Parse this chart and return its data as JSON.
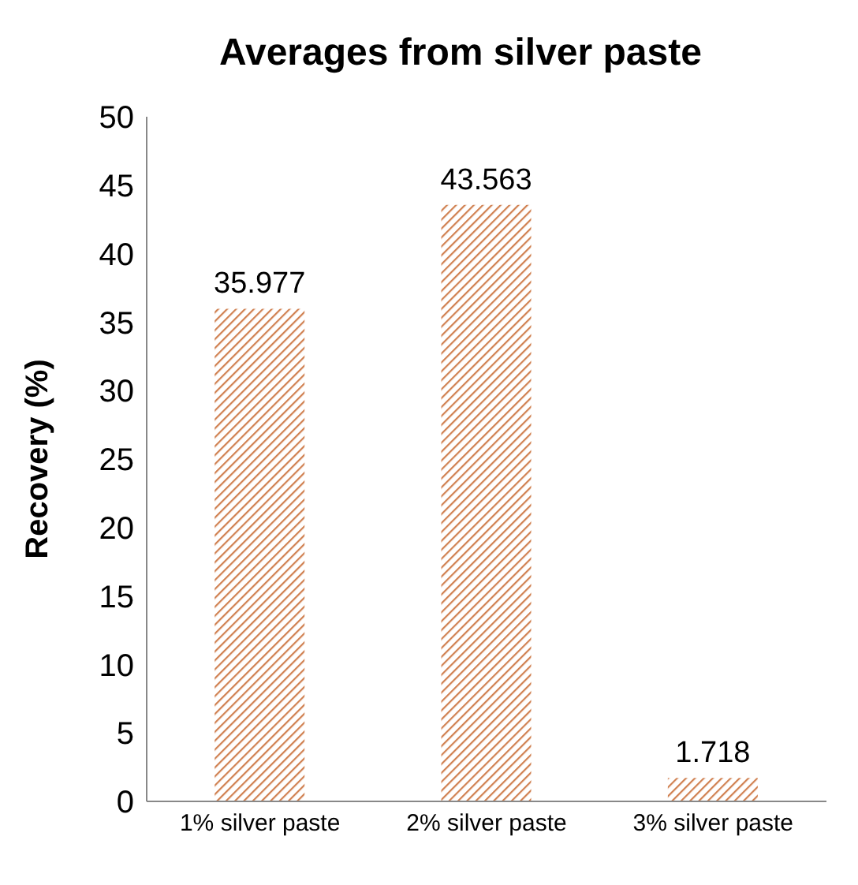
{
  "chart_data": {
    "type": "bar",
    "title": "Averages from silver paste",
    "ylabel": "Recovery (%)",
    "categories": [
      "1% silver paste",
      "2% silver paste",
      "3% silver paste"
    ],
    "values": [
      35.977,
      43.563,
      1.718
    ],
    "color": "#d08050",
    "ylim": [
      0,
      50
    ],
    "yticks": [
      0,
      5,
      10,
      15,
      20,
      25,
      30,
      35,
      40,
      45,
      50
    ],
    "grid": false,
    "data_labels": true
  }
}
